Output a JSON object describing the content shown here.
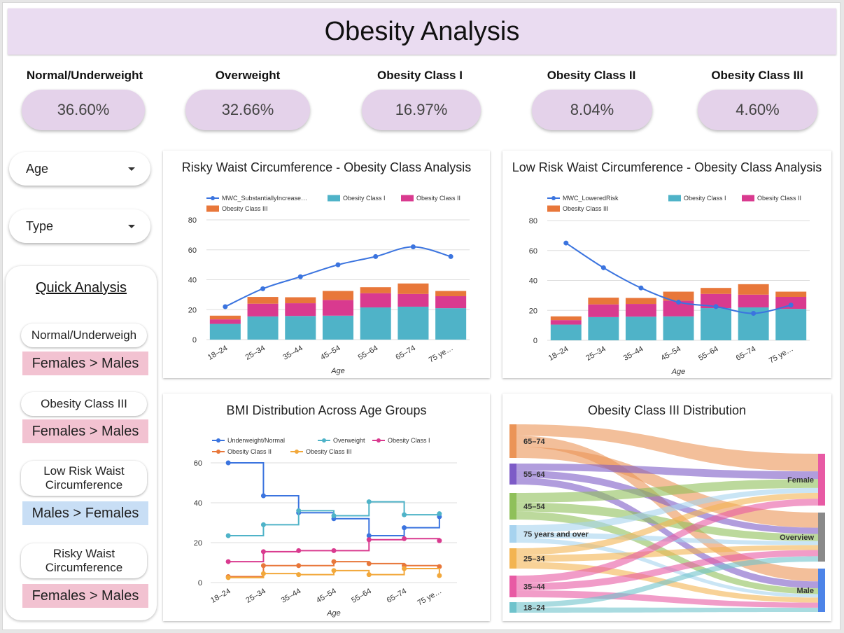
{
  "page_title": "Obesity Analysis",
  "kpis": [
    {
      "label": "Normal/Underweight",
      "value": "36.60%"
    },
    {
      "label": "Overweight",
      "value": "32.66%"
    },
    {
      "label": "Obesity Class I",
      "value": "16.97%"
    },
    {
      "label": "Obesity Class II",
      "value": "8.04%"
    },
    {
      "label": "Obesity Class III",
      "value": "4.60%"
    }
  ],
  "filters": {
    "age_label": "Age",
    "type_label": "Type"
  },
  "quick_analysis": {
    "title": "Quick Analysis",
    "items": [
      {
        "label": "Normal/Underweigh",
        "result": "Females > Males",
        "result_color": "#f2c2d1"
      },
      {
        "label": "Obesity Class III",
        "result": "Females > Males",
        "result_color": "#f2c2d1"
      },
      {
        "label": "Low Risk Waist Circumference",
        "result": "Males > Females",
        "result_color": "#c8def5"
      },
      {
        "label": "Risky Waist Circumference",
        "result": "Females > Males",
        "result_color": "#f2c2d1"
      }
    ]
  },
  "colors": {
    "accent": "#eadcf1",
    "line_blue": "#3b74df",
    "class1": "#4fb3c8",
    "class2": "#d93a8f",
    "class3": "#e8773a",
    "overweight": "#4fb3c8",
    "class3_orange_line": "#f2a83b"
  },
  "chart_data": [
    {
      "type": "bar",
      "title": "Risky Waist Circumference - Obesity Class Analysis",
      "xlabel": "Age",
      "ylabel": "",
      "ylim": [
        0,
        80
      ],
      "yticks": [
        "0",
        "20",
        "40",
        "60",
        "80"
      ],
      "categories": [
        "18–24",
        "25–34",
        "35–44",
        "45–54",
        "55–64",
        "65–74",
        "75 ye…"
      ],
      "stacked": true,
      "series": [
        {
          "name": "Obesity Class I",
          "values": [
            10.5,
            15.5,
            15.8,
            16,
            21.5,
            22,
            21
          ]
        },
        {
          "name": "Obesity Class II",
          "values": [
            3,
            8.5,
            8.5,
            10.5,
            9.5,
            8.5,
            8
          ]
        },
        {
          "name": "Obesity Class III",
          "values": [
            2.5,
            4.5,
            4,
            6,
            4,
            7,
            3.5
          ]
        }
      ],
      "line": {
        "name": "MWC_SubstantiallyIncrease…",
        "values": [
          22,
          34,
          42,
          50,
          55.5,
          62,
          55.5
        ]
      },
      "legend_position": "top"
    },
    {
      "type": "bar",
      "title": "Low Risk Waist Circumference - Obesity Class Analysis",
      "xlabel": "Age",
      "ylabel": "",
      "ylim": [
        0,
        80
      ],
      "yticks": [
        "0",
        "20",
        "40",
        "60",
        "80"
      ],
      "categories": [
        "18–24",
        "25–34",
        "35–44",
        "45–54",
        "55–64",
        "65–74",
        "75 ye…"
      ],
      "stacked": true,
      "series": [
        {
          "name": "Obesity Class I",
          "values": [
            10.5,
            15.5,
            15.8,
            16,
            21.5,
            22,
            21
          ]
        },
        {
          "name": "Obesity Class II",
          "values": [
            3,
            8.5,
            8.5,
            10.5,
            9.5,
            8.5,
            8
          ]
        },
        {
          "name": "Obesity Class III",
          "values": [
            2.5,
            4.5,
            4,
            6,
            4,
            7,
            3.5
          ]
        }
      ],
      "line": {
        "name": "MWC_LoweredRisk",
        "values": [
          65,
          48.5,
          35,
          25.5,
          22.5,
          18,
          23.5
        ]
      },
      "legend_position": "top"
    },
    {
      "type": "line",
      "title": "BMI Distribution Across Age Groups",
      "xlabel": "Age",
      "ylabel": "",
      "ylim": [
        0,
        70
      ],
      "yticks": [
        "0",
        "20",
        "40",
        "60"
      ],
      "categories": [
        "18–24",
        "25–34",
        "35–44",
        "45–54",
        "55–64",
        "65–74",
        "75 ye…"
      ],
      "step": true,
      "series": [
        {
          "name": "Underweight/Normal",
          "color": "#3b74df",
          "values": [
            60,
            43.5,
            35,
            32,
            23.5,
            27.5,
            33
          ]
        },
        {
          "name": "Overweight",
          "color": "#4fb3c8",
          "values": [
            23.5,
            29,
            36,
            33.5,
            40.5,
            34,
            34.5
          ]
        },
        {
          "name": "Obesity Class I",
          "color": "#d93a8f",
          "values": [
            10.5,
            15.5,
            16,
            16,
            21.5,
            22,
            21
          ]
        },
        {
          "name": "Obesity Class II",
          "color": "#e8773a",
          "values": [
            3,
            8.5,
            8.5,
            10.5,
            9.5,
            8.5,
            8
          ]
        },
        {
          "name": "Obesity Class III",
          "color": "#f2a83b",
          "values": [
            2.5,
            4.5,
            4,
            6,
            4,
            7,
            3.5
          ]
        }
      ],
      "legend_position": "top"
    },
    {
      "type": "sankey",
      "title": "Obesity Class III Distribution",
      "sources": [
        {
          "name": "65–74",
          "color": "#eb9457"
        },
        {
          "name": "55–64",
          "color": "#7d5bc7"
        },
        {
          "name": "45–54",
          "color": "#8fc05a"
        },
        {
          "name": "75 years and over",
          "color": "#a7d3ef"
        },
        {
          "name": "25–34",
          "color": "#f3b451"
        },
        {
          "name": "35–44",
          "color": "#e85aa4"
        },
        {
          "name": "18–24",
          "color": "#6fc3cc"
        }
      ],
      "targets": [
        {
          "name": "Female",
          "color": "#e85aa4"
        },
        {
          "name": "Overview",
          "color": "#8a8a8a"
        },
        {
          "name": "Male",
          "color": "#4d84e8"
        }
      ]
    }
  ]
}
